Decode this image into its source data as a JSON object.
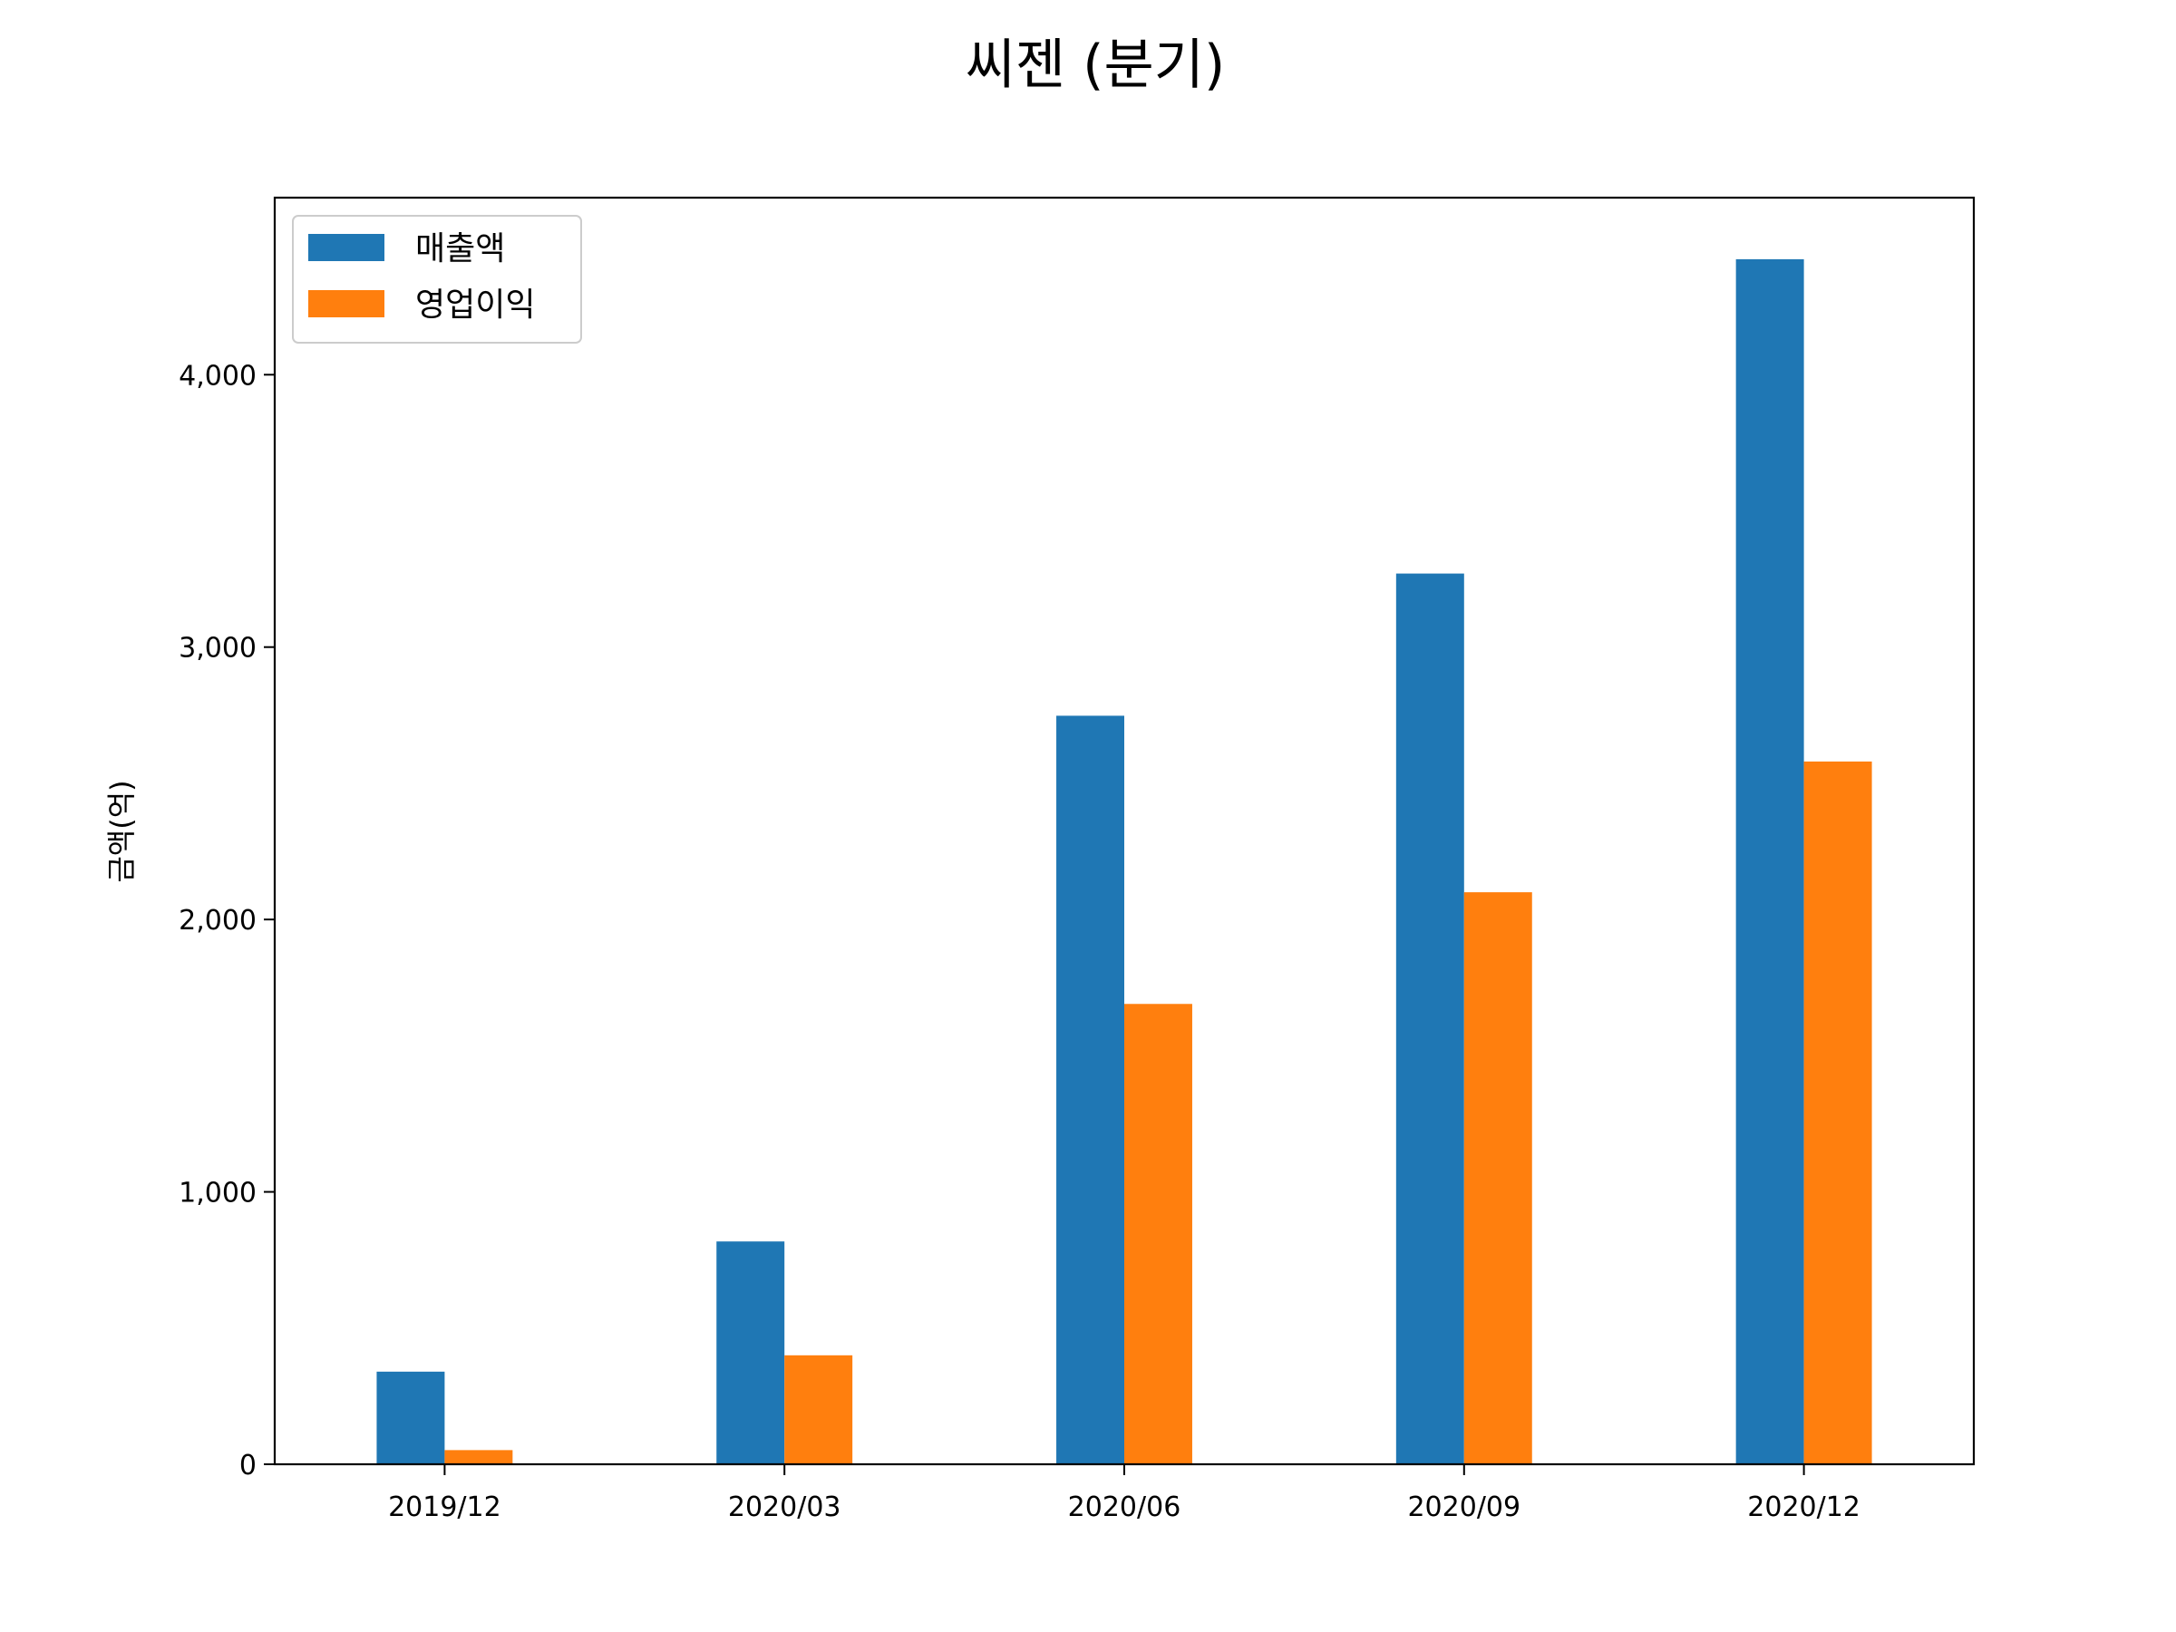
{
  "chart_data": {
    "type": "bar",
    "title": "씨젠 (분기)",
    "xlabel": "",
    "ylabel": "금액(억)",
    "categories": [
      "2019/12",
      "2020/03",
      "2020/06",
      "2020/09",
      "2020/12"
    ],
    "series": [
      {
        "name": "매출액",
        "color": "#1f77b4",
        "values": [
          340,
          818,
          2748,
          3270,
          4424
        ]
      },
      {
        "name": "영업이익",
        "color": "#ff7f0e",
        "values": [
          52,
          400,
          1690,
          2100,
          2580
        ]
      }
    ],
    "ylim": [
      0,
      4650
    ],
    "yticks": [
      0,
      1000,
      2000,
      3000,
      4000
    ],
    "ytick_labels": [
      "0",
      "1,000",
      "2,000",
      "3,000",
      "4,000"
    ],
    "legend_position": "upper-left",
    "grid": false
  }
}
